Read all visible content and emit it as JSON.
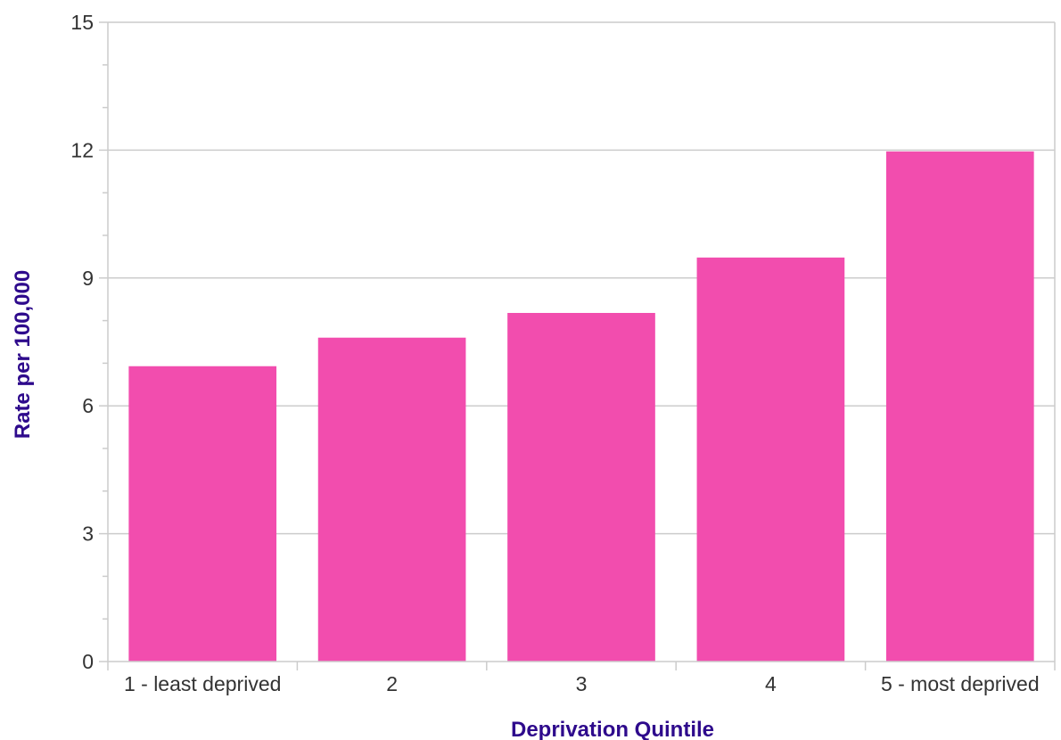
{
  "chart_data": {
    "type": "bar",
    "title": "",
    "xlabel": "Deprivation Quintile",
    "ylabel": "Rate per 100,000",
    "categories": [
      "1 - least deprived",
      "2",
      "3",
      "4",
      "5 - most deprived"
    ],
    "values": [
      6.93,
      7.6,
      8.18,
      9.48,
      11.97
    ],
    "ylim": [
      0,
      15
    ],
    "yticks": [
      0,
      3,
      6,
      9,
      12,
      15
    ],
    "grid": true,
    "legend": "none",
    "colors": {
      "bar": "#f24dae",
      "axis_title": "#2e0a8c",
      "grid": "#cccccc",
      "tick_text": "#333333"
    }
  }
}
